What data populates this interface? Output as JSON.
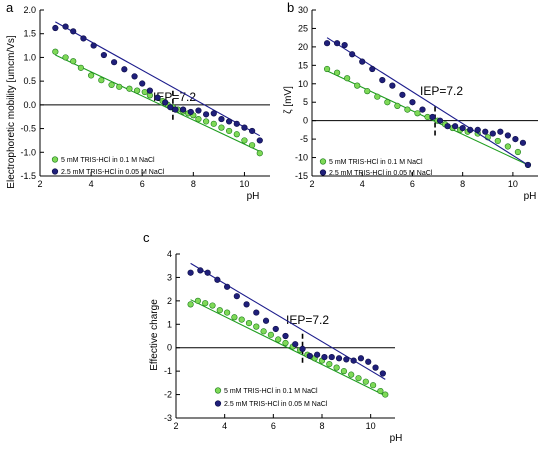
{
  "figure": {
    "panel_letters": [
      "a",
      "b",
      "c"
    ]
  },
  "colors": {
    "series_green_fill": "#7ed957",
    "series_green_stroke": "#1a7a1a",
    "series_green_fit": "#1f9e1f",
    "series_blue_fill": "#1f1f7a",
    "series_blue_stroke": "#0c0c45",
    "series_blue_fit": "#1c1c8c",
    "axis": "#000000"
  },
  "chart_data": [
    {
      "type": "scatter",
      "panel": "a",
      "title": "",
      "xlabel": "pH",
      "ylabel": "Electrophoretic mobility [umcm/Vs]",
      "xlim": [
        2,
        11
      ],
      "ylim": [
        -1.5,
        2.0
      ],
      "xticks": [
        2,
        4,
        6,
        8,
        10
      ],
      "yticks": [
        -1.5,
        -1.0,
        -0.5,
        0.0,
        0.5,
        1.0,
        1.5,
        2.0
      ],
      "ytick_labels": [
        "-1.5",
        "-1.0",
        "-0.5",
        "0.0",
        "0.5",
        "1.0",
        "1.5",
        "2.0"
      ],
      "annotation": {
        "text": "IEP=7.2",
        "x": 7.2
      },
      "legend": {
        "placement": "bottom-left",
        "entries": [
          "5 mM TRIS-HCl in 0.1 M NaCl",
          "2.5 mM TRIS-HCl in 0.05 M NaCl"
        ]
      },
      "series": [
        {
          "name": "5 mM TRIS-HCl in 0.1 M NaCl",
          "x": [
            2.6,
            3.0,
            3.3,
            3.6,
            4.0,
            4.4,
            4.8,
            5.1,
            5.5,
            5.8,
            6.1,
            6.3,
            6.6,
            6.8,
            7.0,
            7.2,
            7.4,
            7.6,
            7.8,
            8.0,
            8.2,
            8.5,
            8.8,
            9.1,
            9.4,
            9.7,
            10.0,
            10.3,
            10.6
          ],
          "y": [
            1.12,
            1.0,
            0.92,
            0.78,
            0.62,
            0.52,
            0.42,
            0.38,
            0.34,
            0.3,
            0.27,
            0.2,
            0.15,
            0.08,
            0.0,
            -0.05,
            -0.1,
            -0.14,
            -0.18,
            -0.22,
            -0.3,
            -0.35,
            -0.4,
            -0.48,
            -0.55,
            -0.62,
            -0.75,
            -0.85,
            -1.02
          ],
          "fit": {
            "x": [
              2.6,
              10.6
            ],
            "y": [
              1.05,
              -0.98
            ]
          }
        },
        {
          "name": "2.5 mM TRIS-HCl in 0.05 M NaCl",
          "x": [
            2.6,
            3.0,
            3.3,
            3.7,
            4.1,
            4.5,
            4.9,
            5.3,
            5.7,
            6.0,
            6.3,
            6.6,
            6.9,
            7.1,
            7.3,
            7.6,
            7.9,
            8.2,
            8.5,
            8.8,
            9.1,
            9.4,
            9.7,
            10.0,
            10.3,
            10.6
          ],
          "y": [
            1.62,
            1.65,
            1.55,
            1.4,
            1.25,
            1.05,
            0.9,
            0.75,
            0.6,
            0.45,
            0.3,
            0.15,
            0.05,
            -0.05,
            -0.1,
            -0.1,
            -0.15,
            -0.12,
            -0.2,
            -0.18,
            -0.3,
            -0.35,
            -0.4,
            -0.48,
            -0.55,
            -0.75
          ],
          "fit": {
            "x": [
              2.6,
              10.6
            ],
            "y": [
              1.75,
              -0.65
            ]
          }
        }
      ]
    },
    {
      "type": "scatter",
      "panel": "b",
      "title": "",
      "xlabel": "pH",
      "ylabel": "ζ [mV]",
      "xlim": [
        2,
        11
      ],
      "ylim": [
        -15,
        30
      ],
      "xticks": [
        2,
        4,
        6,
        8,
        10
      ],
      "yticks": [
        -15,
        -10,
        -5,
        0,
        5,
        10,
        15,
        20,
        25,
        30
      ],
      "annotation": {
        "text": "IEP=7.2",
        "x": 6.9
      },
      "legend": {
        "placement": "bottom-left",
        "entries": [
          "5 mM TRIS-HCl in 0.1 M NaCl",
          "2.5 mM TRIS-HCl in 0.05 M NaCl"
        ]
      },
      "series": [
        {
          "name": "5 mM TRIS-HCl in 0.1 M NaCl",
          "x": [
            2.6,
            3.0,
            3.4,
            3.8,
            4.2,
            4.6,
            5.0,
            5.4,
            5.8,
            6.2,
            6.6,
            7.0,
            7.3,
            7.6,
            7.9,
            8.2,
            8.6,
            9.0,
            9.4,
            9.8,
            10.2,
            10.6
          ],
          "y": [
            14,
            13,
            11.5,
            9.5,
            8,
            6.5,
            5,
            4,
            3,
            2,
            1,
            0,
            -1,
            -2,
            -2.5,
            -3,
            -3.5,
            -4.5,
            -5.5,
            -7,
            -8.5,
            -12
          ],
          "fit": {
            "x": [
              2.6,
              10.6
            ],
            "y": [
              13.5,
              -12
            ]
          }
        },
        {
          "name": "2.5 mM TRIS-HCl in 0.05 M NaCl",
          "x": [
            2.6,
            3.0,
            3.3,
            3.6,
            4.0,
            4.4,
            4.8,
            5.2,
            5.6,
            6.0,
            6.4,
            6.8,
            7.1,
            7.4,
            7.7,
            8.0,
            8.3,
            8.6,
            8.9,
            9.2,
            9.5,
            9.8,
            10.1,
            10.4,
            10.6
          ],
          "y": [
            21,
            21,
            20.5,
            18,
            16,
            14,
            11,
            9.5,
            7,
            5,
            3,
            1,
            0,
            -1.5,
            -1.5,
            -2,
            -2.5,
            -2.5,
            -3,
            -3.5,
            -3,
            -4,
            -5,
            -6,
            -12
          ],
          "fit": {
            "x": [
              2.6,
              10.6
            ],
            "y": [
              22.5,
              -12
            ]
          }
        }
      ]
    },
    {
      "type": "scatter",
      "panel": "c",
      "title": "",
      "xlabel": "pH",
      "ylabel": "Effective charge",
      "xlim": [
        2,
        11
      ],
      "ylim": [
        -3,
        4
      ],
      "xticks": [
        2,
        4,
        6,
        8,
        10
      ],
      "yticks": [
        -3,
        -2,
        -1,
        0,
        1,
        2,
        3,
        4
      ],
      "annotation": {
        "text": "IEP=7.2",
        "x": 7.2
      },
      "legend": {
        "placement": "bottom-left",
        "entries": [
          "5 mM TRIS-HCl in 0.1 M NaCl",
          "2.5 mM TRIS-HCl in 0.05 M NaCl"
        ]
      },
      "series": [
        {
          "name": "5 mM TRIS-HCl in 0.1 M NaCl",
          "x": [
            2.6,
            2.9,
            3.2,
            3.5,
            3.8,
            4.1,
            4.4,
            4.7,
            5.0,
            5.3,
            5.6,
            5.9,
            6.2,
            6.5,
            6.8,
            7.1,
            7.4,
            7.7,
            8.0,
            8.3,
            8.6,
            8.9,
            9.2,
            9.5,
            9.8,
            10.1,
            10.4,
            10.6
          ],
          "y": [
            1.85,
            2.0,
            1.9,
            1.8,
            1.6,
            1.5,
            1.3,
            1.2,
            1.05,
            0.9,
            0.7,
            0.55,
            0.35,
            0.2,
            0.05,
            -0.1,
            -0.3,
            -0.45,
            -0.55,
            -0.7,
            -0.85,
            -1.0,
            -1.15,
            -1.3,
            -1.45,
            -1.6,
            -1.85,
            -2.0
          ],
          "fit": {
            "x": [
              2.6,
              10.6
            ],
            "y": [
              2.05,
              -2.05
            ]
          }
        },
        {
          "name": "2.5 mM TRIS-HCl in 0.05 M NaCl",
          "x": [
            2.6,
            3.0,
            3.3,
            3.7,
            4.1,
            4.5,
            4.9,
            5.3,
            5.7,
            6.1,
            6.5,
            6.9,
            7.2,
            7.5,
            7.8,
            8.1,
            8.4,
            8.7,
            9.0,
            9.3,
            9.6,
            9.9,
            10.2,
            10.5
          ],
          "y": [
            3.2,
            3.3,
            3.2,
            2.9,
            2.6,
            2.2,
            1.85,
            1.5,
            1.15,
            0.8,
            0.5,
            0.15,
            -0.05,
            -0.35,
            -0.3,
            -0.4,
            -0.4,
            -0.45,
            -0.5,
            -0.55,
            -0.45,
            -0.6,
            -0.85,
            -1.1
          ],
          "fit": {
            "x": [
              2.6,
              10.6
            ],
            "y": [
              3.6,
              -1.35
            ]
          }
        }
      ]
    }
  ]
}
